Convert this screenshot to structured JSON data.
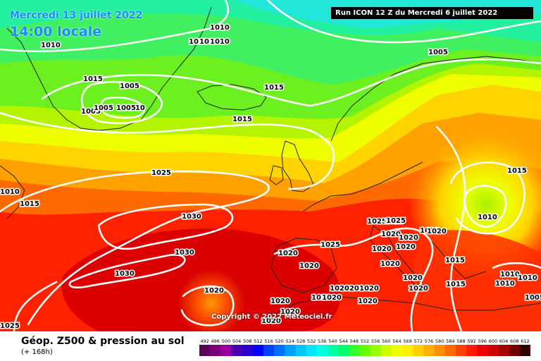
{
  "header": {
    "date": "Mercredi 13 juillet 2022",
    "time": "14:00 locale",
    "run": "Run ICON 12 Z du Mercredi 6 juillet 2022"
  },
  "copyright": "Copyright © 2022 Meteociel.fr",
  "legend": {
    "title": "Géop. Z500 & pression au sol",
    "subtitle": "(+ 168h)",
    "scale_values": [
      "492",
      "496",
      "500",
      "504",
      "508",
      "512",
      "516",
      "520",
      "524",
      "528",
      "532",
      "536",
      "540",
      "544",
      "548",
      "552",
      "556",
      "560",
      "564",
      "568",
      "572",
      "576",
      "580",
      "584",
      "588",
      "592",
      "596",
      "600",
      "604",
      "608",
      "612"
    ],
    "scale_colors": [
      "#5a005a",
      "#7a007a",
      "#9a009a",
      "#4b00b0",
      "#2a00d0",
      "#0000ff",
      "#0040ff",
      "#0070ff",
      "#00a0ff",
      "#00c8ff",
      "#00e6ff",
      "#00ffe0",
      "#00ffa8",
      "#00ff70",
      "#33ff33",
      "#66ff00",
      "#99ff00",
      "#ccff00",
      "#eeff00",
      "#ffee00",
      "#ffd000",
      "#ffb000",
      "#ff9000",
      "#ff6a00",
      "#ff4000",
      "#ff1a00",
      "#ee0000",
      "#cc0000",
      "#a80000",
      "#6e0000",
      "#300000"
    ]
  },
  "isobar_labels": [
    "1010",
    "1010",
    "1010",
    "1010",
    "1010",
    "1005",
    "1015",
    "1005",
    "1005",
    "1005",
    "1010",
    "1015",
    "1005",
    "1025",
    "1010",
    "1015",
    "1015",
    "1030",
    "1030",
    "1030",
    "1020",
    "1025",
    "1020",
    "1020",
    "1020",
    "1025",
    "1020",
    "1020",
    "1020",
    "1020",
    "1020",
    "1020",
    "1020",
    "1020",
    "1020",
    "1020",
    "1020",
    "1010",
    "1015",
    "1015",
    "1015",
    "1010",
    "1010",
    "1010",
    "1005",
    "1020",
    "1020",
    "1020",
    "1020",
    "1020",
    "1020",
    "1025",
    "1020",
    "1025"
  ]
}
